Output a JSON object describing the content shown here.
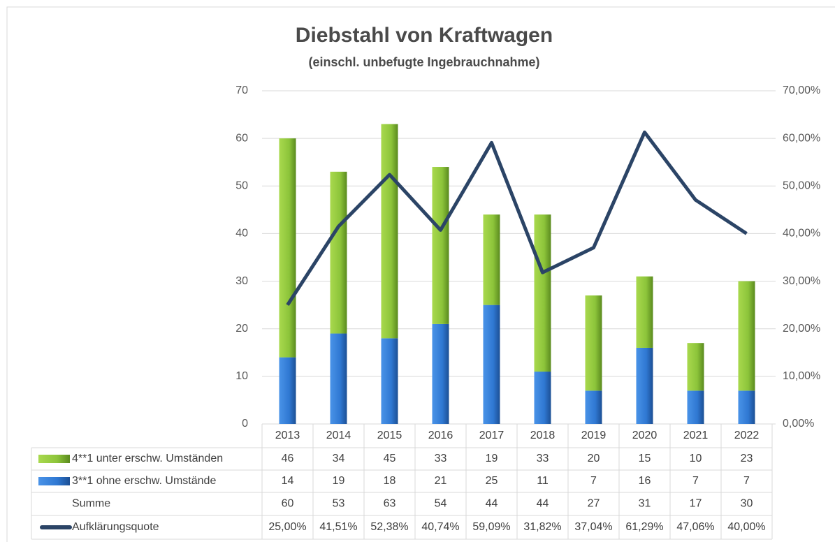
{
  "chart_data": {
    "type": "stacked_bar_line",
    "title": "Diebstahl von Kraftwagen",
    "subtitle": "(einschl. unbefugte Ingebrauchnahme)",
    "categories": [
      "2013",
      "2014",
      "2015",
      "2016",
      "2017",
      "2018",
      "2019",
      "2020",
      "2021",
      "2022"
    ],
    "series": [
      {
        "name": "3**1 ohne erschw. Umstände",
        "color": "#2f78d2",
        "values": [
          14,
          19,
          18,
          21,
          25,
          11,
          7,
          16,
          7,
          7
        ]
      },
      {
        "name": "4**1 unter erschw. Umständen",
        "color": "#8cc43a",
        "values": [
          46,
          34,
          45,
          33,
          19,
          33,
          20,
          15,
          10,
          23
        ]
      },
      {
        "name": "Aufklärungsquote",
        "color": "#2b4466",
        "axis": "y2",
        "type": "line",
        "values": [
          25.0,
          41.51,
          52.38,
          40.74,
          59.09,
          31.82,
          37.04,
          61.29,
          47.06,
          40.0
        ],
        "value_labels": [
          "25,00%",
          "41,51%",
          "52,38%",
          "40,74%",
          "59,09%",
          "31,82%",
          "37,04%",
          "61,29%",
          "47,06%",
          "40,00%"
        ]
      }
    ],
    "sum_row": {
      "name": "Summe",
      "values": [
        60,
        53,
        63,
        54,
        44,
        44,
        27,
        31,
        17,
        30
      ]
    },
    "ylim": [
      0,
      70
    ],
    "yticks": [
      0,
      10,
      20,
      30,
      40,
      50,
      60,
      70
    ],
    "y2lim": [
      0,
      70
    ],
    "y2ticks": [
      {
        "value": 0,
        "label": "0,00%"
      },
      {
        "value": 10,
        "label": "10,00%"
      },
      {
        "value": 20,
        "label": "20,00%"
      },
      {
        "value": 30,
        "label": "30,00%"
      },
      {
        "value": 40,
        "label": "40,00%"
      },
      {
        "value": 50,
        "label": "50,00%"
      },
      {
        "value": 60,
        "label": "60,00%"
      },
      {
        "value": 70,
        "label": "70,00%"
      }
    ],
    "grid": true
  }
}
